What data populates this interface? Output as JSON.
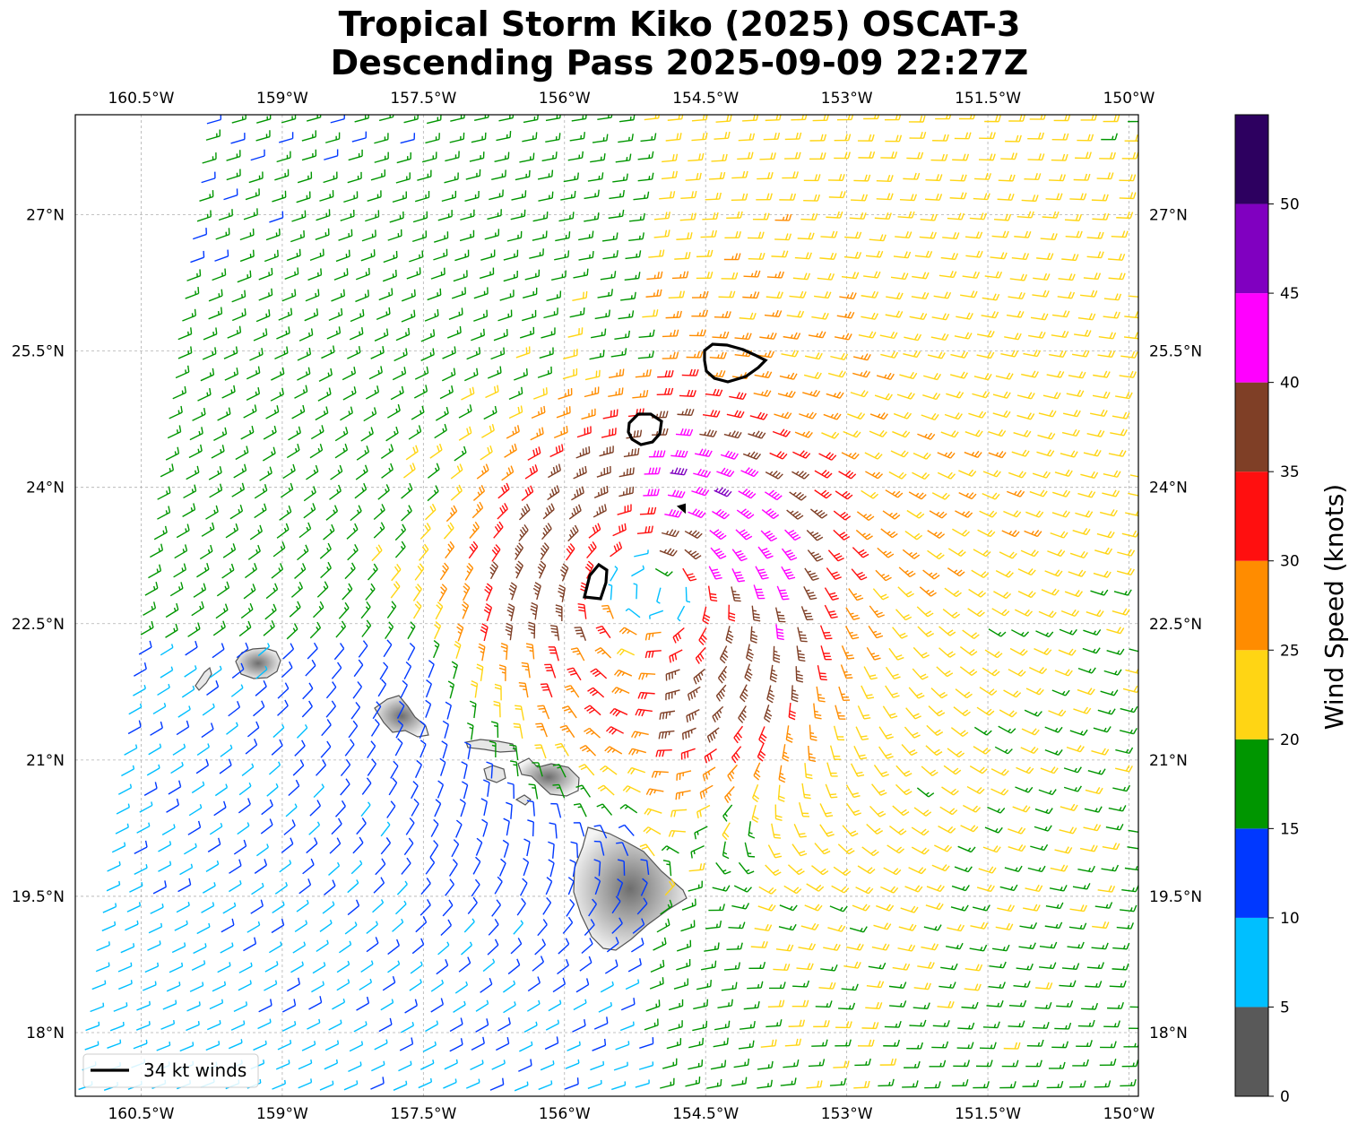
{
  "title": {
    "line1": "Tropical Storm Kiko (2025) OSCAT-3",
    "line2": "Descending Pass 2025-09-09 22:27Z"
  },
  "map": {
    "lon_range": [
      -161.2,
      -149.9
    ],
    "lat_range": [
      17.3,
      28.1
    ],
    "lon_ticks": [
      {
        "lon": -160.5,
        "label": "160.5°W"
      },
      {
        "lon": -159.0,
        "label": "159°W"
      },
      {
        "lon": -157.5,
        "label": "157.5°W"
      },
      {
        "lon": -156.0,
        "label": "156°W"
      },
      {
        "lon": -154.5,
        "label": "154.5°W"
      },
      {
        "lon": -153.0,
        "label": "153°W"
      },
      {
        "lon": -151.5,
        "label": "151.5°W"
      },
      {
        "lon": -150.0,
        "label": "150°W"
      }
    ],
    "lat_ticks": [
      {
        "lat": 27.0,
        "label": "27°N"
      },
      {
        "lat": 25.5,
        "label": "25.5°N"
      },
      {
        "lat": 24.0,
        "label": "24°N"
      },
      {
        "lat": 22.5,
        "label": "22.5°N"
      },
      {
        "lat": 21.0,
        "label": "21°N"
      },
      {
        "lat": 19.5,
        "label": "19.5°N"
      },
      {
        "lat": 18.0,
        "label": "18°N"
      }
    ],
    "gridlines": true,
    "storm_center": {
      "lon": -155.1,
      "lat": 22.85
    },
    "swath_west_edge_lon_at_top": -159.7,
    "swath_west_edge_lon_at_bottom": -161.1,
    "islands": [
      {
        "name_icon": "kauai-icon"
      },
      {
        "name_icon": "oahu-icon"
      },
      {
        "name_icon": "molokai-icon"
      },
      {
        "name_icon": "maui-icon"
      },
      {
        "name_icon": "hawaii-big-island-icon"
      }
    ]
  },
  "legend": {
    "label": "34 kt winds",
    "placement": "lower-left"
  },
  "colorbar": {
    "label": "Wind Speed (knots)",
    "ticks": [
      "0",
      "5",
      "10",
      "15",
      "20",
      "25",
      "30",
      "35",
      "40",
      "45",
      "50"
    ],
    "bins": [
      {
        "min": 0,
        "max": 5,
        "color": "#595959"
      },
      {
        "min": 5,
        "max": 10,
        "color": "#00bfff"
      },
      {
        "min": 10,
        "max": 15,
        "color": "#0038ff"
      },
      {
        "min": 15,
        "max": 20,
        "color": "#009600"
      },
      {
        "min": 20,
        "max": 25,
        "color": "#ffd514"
      },
      {
        "min": 25,
        "max": 30,
        "color": "#ff8c00"
      },
      {
        "min": 30,
        "max": 35,
        "color": "#ff0f0f"
      },
      {
        "min": 35,
        "max": 40,
        "color": "#7f3f26"
      },
      {
        "min": 40,
        "max": 45,
        "color": "#ff00ff"
      },
      {
        "min": 45,
        "max": 50,
        "color": "#8000c0"
      },
      {
        "min": 50,
        "max": 55,
        "color": "#2d0060"
      }
    ]
  }
}
